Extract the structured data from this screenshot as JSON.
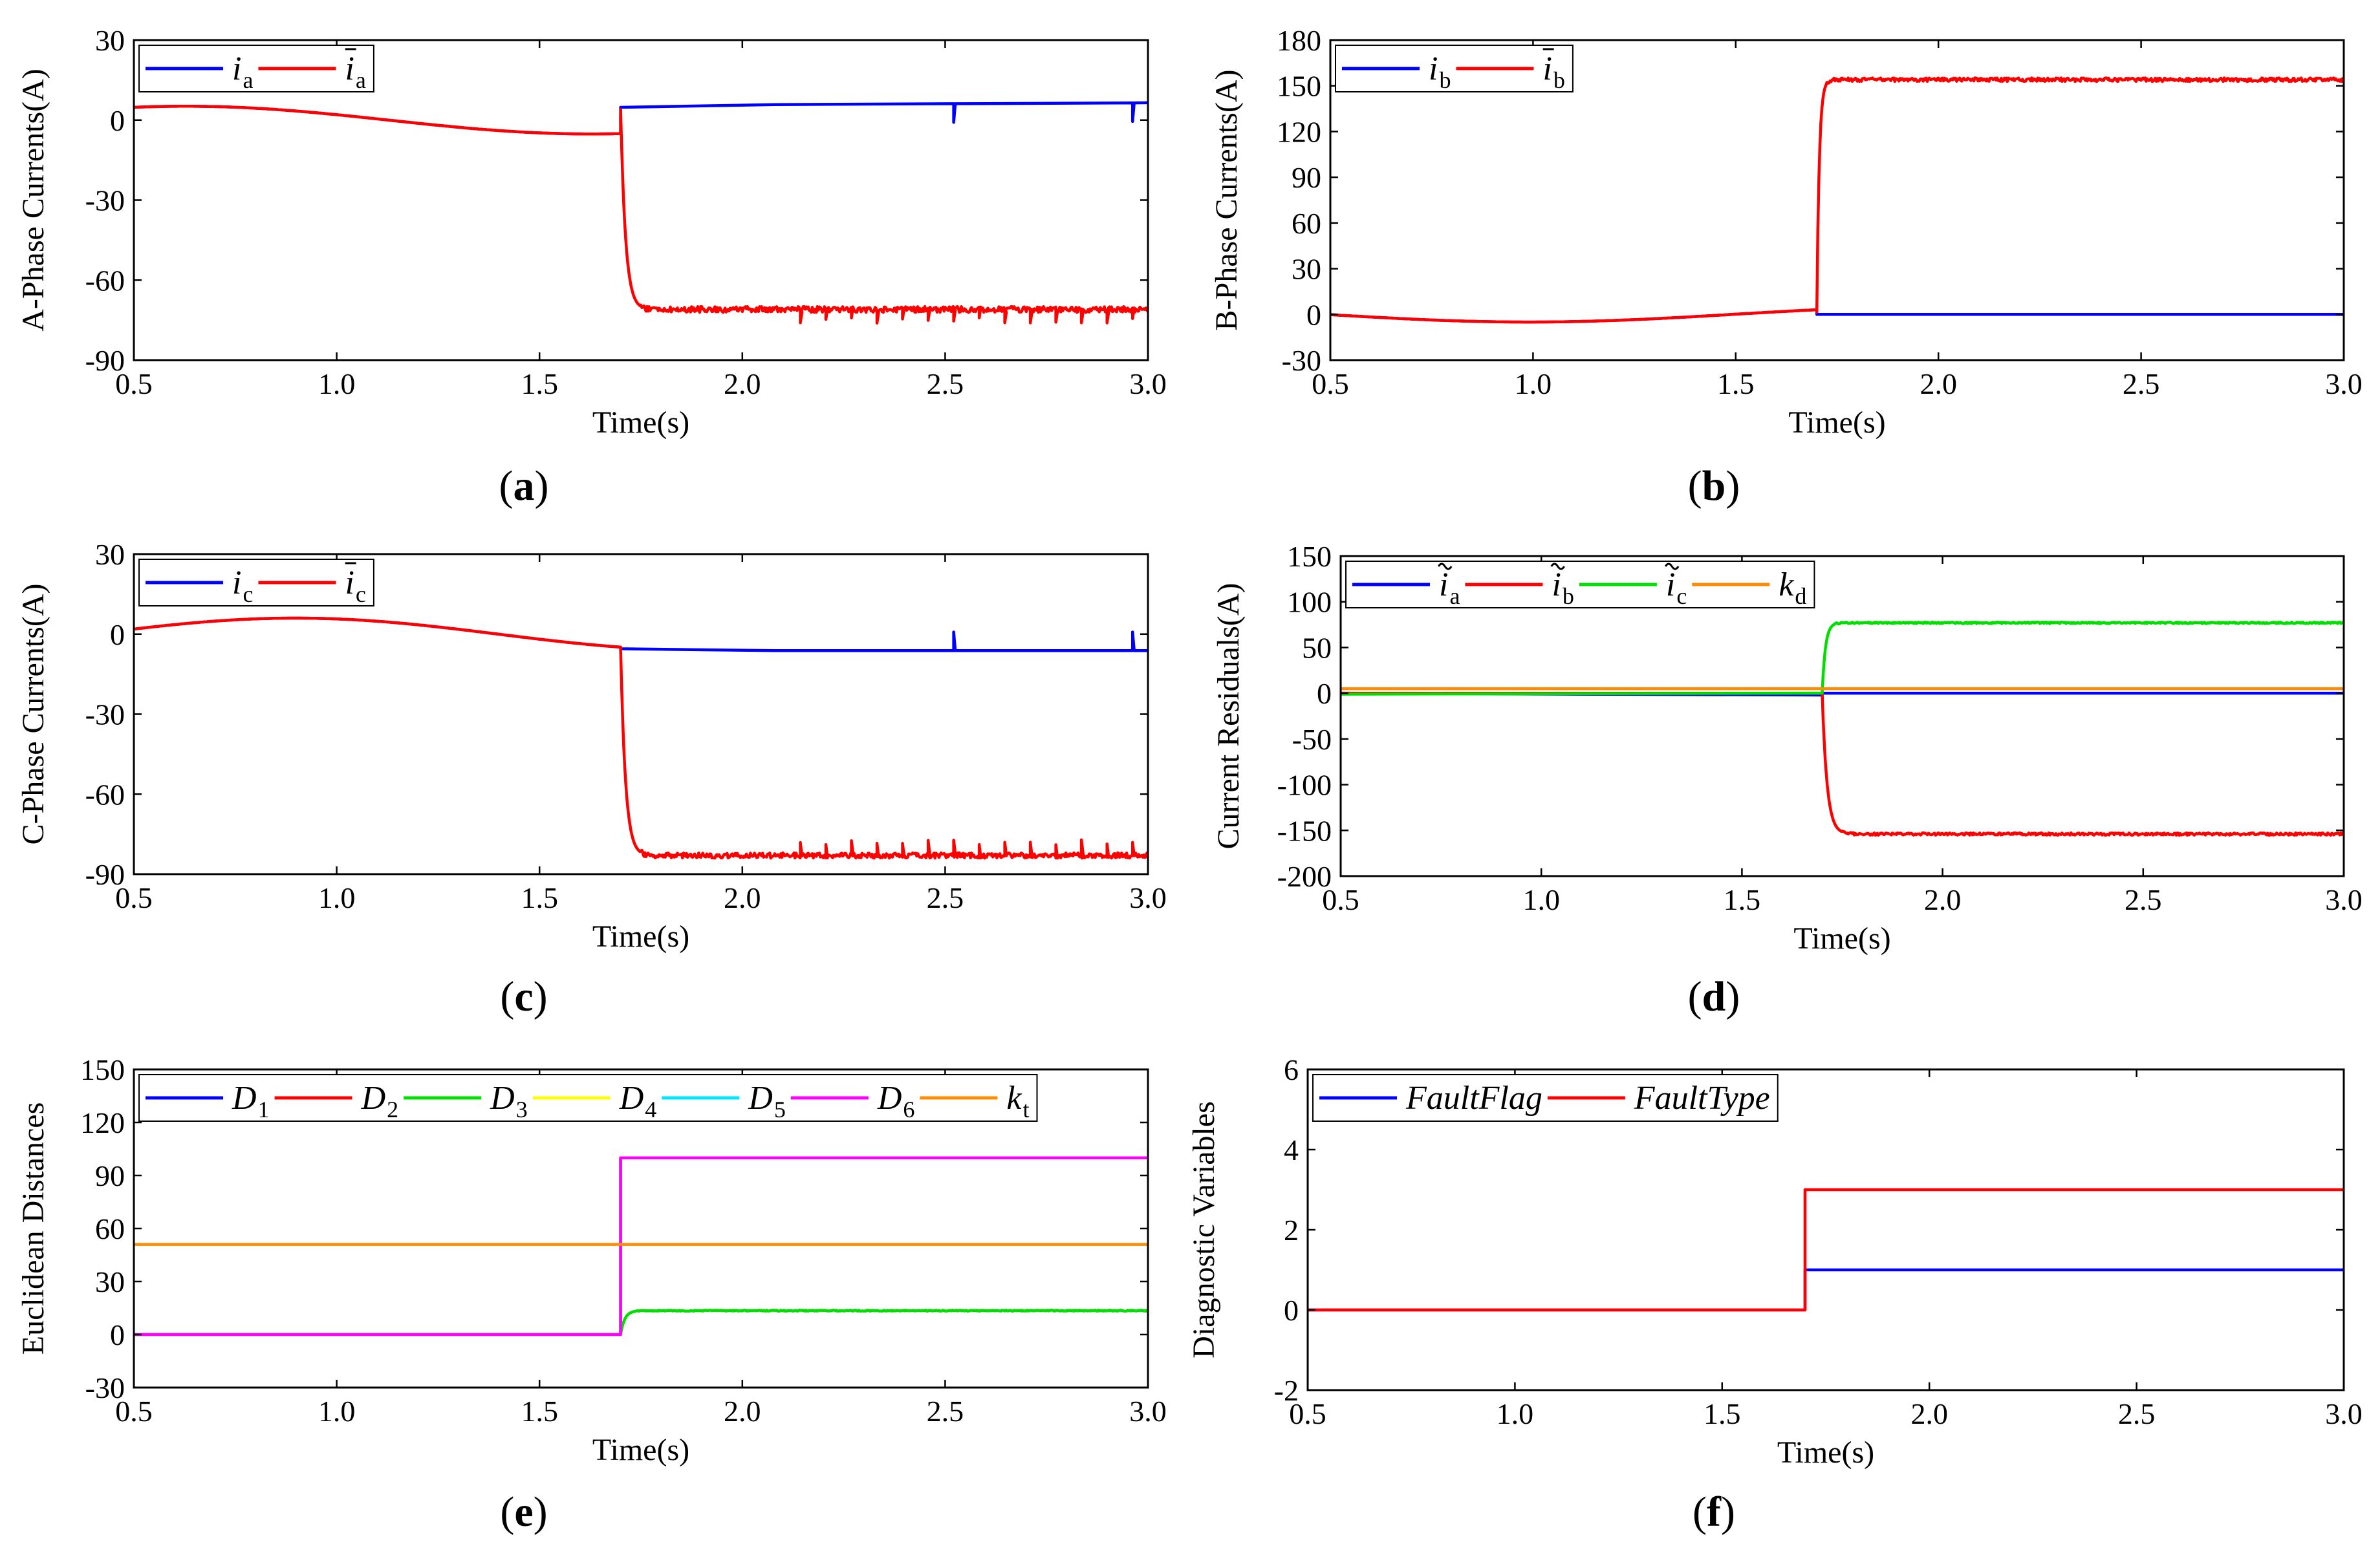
{
  "figure": {
    "panels": [
      {
        "id": "a",
        "label_text": "a",
        "chart_data": {
          "type": "line",
          "title": "",
          "xlabel": "Time(s)",
          "ylabel": "A-Phase Currents(A)",
          "xlim": [
            0.5,
            3.0
          ],
          "ylim": [
            -90,
            30
          ],
          "xticks": [
            "0.5",
            "1.0",
            "1.5",
            "2.0",
            "2.5",
            "3.0"
          ],
          "yticks": [
            "-90",
            "-60",
            "-30",
            "0",
            "30"
          ],
          "legend_position": "top-left",
          "series": [
            {
              "name": "i_a",
              "legend": {
                "base": "i",
                "accent": "",
                "sub": "a",
                "italic": true
              },
              "color": "#0000ff",
              "segments": [
                {
                  "from": 0.5,
                  "to": 1.7,
                  "kind": "sine",
                  "amp": 5.2,
                  "freq": 0.5,
                  "phase": -0.4
                },
                {
                  "from": 1.7,
                  "to": 2.08,
                  "kind": "linear",
                  "y0": 4.8,
                  "y1": 5.8
                },
                {
                  "from": 2.08,
                  "to": 3.0,
                  "kind": "spiky",
                  "y0": 5.8,
                  "y1": 6.5,
                  "spike": -7,
                  "period": 0.063
                }
              ]
            },
            {
              "name": "i_a (estimated)",
              "legend": {
                "base": "i",
                "accent": "bar",
                "sub": "a",
                "italic": true
              },
              "color": "#ff0000",
              "segments": [
                {
                  "from": 0.5,
                  "to": 1.7,
                  "kind": "sine",
                  "amp": 5.2,
                  "freq": 0.5,
                  "phase": -0.4
                },
                {
                  "from": 1.7,
                  "to": 3.0,
                  "kind": "step",
                  "y_start": 4.0,
                  "y_end": -71,
                  "tau": 0.012,
                  "noise": 1.1,
                  "spike": -4,
                  "period": 0.063,
                  "spike_from": 2.08
                }
              ]
            }
          ]
        }
      },
      {
        "id": "b",
        "label_text": "b",
        "chart_data": {
          "type": "line",
          "title": "",
          "xlabel": "Time(s)",
          "ylabel": "B-Phase Currents(A)",
          "xlim": [
            0.5,
            3.0
          ],
          "ylim": [
            -30,
            180
          ],
          "xticks": [
            "0.5",
            "1.0",
            "1.5",
            "2.0",
            "2.5",
            "3.0"
          ],
          "yticks": [
            "-30",
            "0",
            "30",
            "60",
            "90",
            "120",
            "150",
            "180"
          ],
          "legend_position": "top-left",
          "series": [
            {
              "name": "i_b",
              "legend": {
                "base": "i",
                "accent": "",
                "sub": "b",
                "italic": true
              },
              "color": "#0000ff",
              "segments": [
                {
                  "from": 0.5,
                  "to": 1.7,
                  "kind": "sine",
                  "amp": 5.0,
                  "freq": 0.5,
                  "phase": 1.6
                },
                {
                  "from": 1.7,
                  "to": 3.0,
                  "kind": "linear",
                  "y0": 0,
                  "y1": 0
                }
              ]
            },
            {
              "name": "i_b (estimated)",
              "legend": {
                "base": "i",
                "accent": "bar",
                "sub": "b",
                "italic": true
              },
              "color": "#ff0000",
              "segments": [
                {
                  "from": 0.5,
                  "to": 1.7,
                  "kind": "sine",
                  "amp": 5.0,
                  "freq": 0.5,
                  "phase": 1.6
                },
                {
                  "from": 1.7,
                  "to": 3.0,
                  "kind": "step",
                  "y_start": 1.5,
                  "y_end": 154,
                  "tau": 0.006,
                  "noise": 1.2
                }
              ]
            }
          ]
        }
      },
      {
        "id": "c",
        "label_text": "c",
        "chart_data": {
          "type": "line",
          "title": "",
          "xlabel": "Time(s)",
          "ylabel": "C-Phase Currents(A)",
          "xlim": [
            0.5,
            3.0
          ],
          "ylim": [
            -90,
            30
          ],
          "xticks": [
            "0.5",
            "1.0",
            "1.5",
            "2.0",
            "2.5",
            "3.0"
          ],
          "yticks": [
            "-90",
            "-60",
            "-30",
            "0",
            "30"
          ],
          "legend_position": "top-left",
          "series": [
            {
              "name": "i_c",
              "legend": {
                "base": "i",
                "accent": "",
                "sub": "c",
                "italic": true
              },
              "color": "#0000ff",
              "segments": [
                {
                  "from": 0.5,
                  "to": 1.7,
                  "kind": "sine",
                  "amp": 6.0,
                  "freq": 0.5,
                  "phase": -1.25
                },
                {
                  "from": 1.7,
                  "to": 2.08,
                  "kind": "linear",
                  "y0": -5.5,
                  "y1": -6.2
                },
                {
                  "from": 2.08,
                  "to": 3.0,
                  "kind": "spiky",
                  "y0": -6.2,
                  "y1": -6.2,
                  "spike": 7,
                  "period": 0.063
                }
              ]
            },
            {
              "name": "i_c (estimated)",
              "legend": {
                "base": "i",
                "accent": "bar",
                "sub": "c",
                "italic": true
              },
              "color": "#ff0000",
              "segments": [
                {
                  "from": 0.5,
                  "to": 1.7,
                  "kind": "sine",
                  "amp": 6.0,
                  "freq": 0.5,
                  "phase": -1.25
                },
                {
                  "from": 1.7,
                  "to": 3.0,
                  "kind": "step",
                  "y_start": -5.5,
                  "y_end": -83,
                  "tau": 0.012,
                  "noise": 1.0,
                  "spike": 5,
                  "period": 0.063,
                  "spike_from": 2.08
                }
              ]
            }
          ]
        }
      },
      {
        "id": "d",
        "label_text": "d",
        "chart_data": {
          "type": "line",
          "title": "",
          "xlabel": "Time(s)",
          "ylabel": "Current Residuals(A)",
          "xlim": [
            0.5,
            3.0
          ],
          "ylim": [
            -200,
            150
          ],
          "xticks": [
            "0.5",
            "1.0",
            "1.5",
            "2.0",
            "2.5",
            "3.0"
          ],
          "yticks": [
            "-200",
            "-150",
            "-100",
            "-50",
            "0",
            "50",
            "100",
            "150"
          ],
          "legend_position": "top-left",
          "series": [
            {
              "name": "residual i_a",
              "legend": {
                "base": "i",
                "accent": "tilde",
                "sub": "a",
                "italic": true
              },
              "color": "#0000ff",
              "segments": [
                {
                  "from": 0.5,
                  "to": 1.7,
                  "kind": "linear",
                  "y0": 0,
                  "y1": -2
                },
                {
                  "from": 1.7,
                  "to": 3.0,
                  "kind": "linear",
                  "y0": 0,
                  "y1": 0
                }
              ]
            },
            {
              "name": "residual i_b",
              "legend": {
                "base": "i",
                "accent": "tilde",
                "sub": "b",
                "italic": true
              },
              "color": "#ff0000",
              "segments": [
                {
                  "from": 0.5,
                  "to": 1.7,
                  "kind": "linear",
                  "y0": 0,
                  "y1": 0
                },
                {
                  "from": 1.7,
                  "to": 3.0,
                  "kind": "step",
                  "y_start": 0,
                  "y_end": -154,
                  "tau": 0.012,
                  "noise": 1.3
                }
              ]
            },
            {
              "name": "residual i_c",
              "legend": {
                "base": "i",
                "accent": "tilde",
                "sub": "c",
                "italic": true
              },
              "color": "#00e000",
              "segments": [
                {
                  "from": 0.5,
                  "to": 1.7,
                  "kind": "linear",
                  "y0": -1,
                  "y1": 0
                },
                {
                  "from": 1.7,
                  "to": 3.0,
                  "kind": "step",
                  "y_start": 0,
                  "y_end": 77,
                  "tau": 0.008,
                  "noise": 0.9
                }
              ]
            },
            {
              "name": "k_d",
              "legend": {
                "base": "k",
                "accent": "",
                "sub": "d",
                "italic": true
              },
              "color": "#ff8c00",
              "segments": [
                {
                  "from": 0.5,
                  "to": 3.0,
                  "kind": "linear",
                  "y0": 5,
                  "y1": 5
                }
              ]
            }
          ]
        }
      },
      {
        "id": "e",
        "label_text": "e",
        "chart_data": {
          "type": "line",
          "title": "",
          "xlabel": "Time(s)",
          "ylabel": "Euclidean Distances",
          "xlim": [
            0.5,
            3.0
          ],
          "ylim": [
            -30,
            150
          ],
          "xticks": [
            "0.5",
            "1.0",
            "1.5",
            "2.0",
            "2.5",
            "3.0"
          ],
          "yticks": [
            "-30",
            "0",
            "30",
            "60",
            "90",
            "120",
            "150"
          ],
          "legend_position": "top",
          "series": [
            {
              "name": "D_1",
              "legend": {
                "base": "D",
                "accent": "",
                "sub": "1",
                "italic": true
              },
              "color": "#0000ff",
              "segments": [
                {
                  "from": 0.5,
                  "to": 1.7,
                  "kind": "linear",
                  "y0": 0,
                  "y1": 0
                },
                {
                  "from": 1.7,
                  "to": 3.0,
                  "kind": "linear",
                  "y0": 100,
                  "y1": 100
                }
              ]
            },
            {
              "name": "D_2",
              "legend": {
                "base": "D",
                "accent": "",
                "sub": "2",
                "italic": true
              },
              "color": "#ff0000",
              "segments": [
                {
                  "from": 0.5,
                  "to": 1.7,
                  "kind": "linear",
                  "y0": 0,
                  "y1": 0
                },
                {
                  "from": 1.7,
                  "to": 3.0,
                  "kind": "linear",
                  "y0": 100,
                  "y1": 100
                }
              ]
            },
            {
              "name": "D_3",
              "legend": {
                "base": "D",
                "accent": "",
                "sub": "3",
                "italic": true
              },
              "color": "#00e000",
              "segments": [
                {
                  "from": 0.5,
                  "to": 1.7,
                  "kind": "linear",
                  "y0": 0,
                  "y1": 0
                },
                {
                  "from": 1.7,
                  "to": 3.0,
                  "kind": "step",
                  "y_start": 0,
                  "y_end": 13.5,
                  "tau": 0.01,
                  "noise": 0.3
                }
              ]
            },
            {
              "name": "D_4",
              "legend": {
                "base": "D",
                "accent": "",
                "sub": "4",
                "italic": true
              },
              "color": "#ffff00",
              "segments": [
                {
                  "from": 0.5,
                  "to": 1.7,
                  "kind": "linear",
                  "y0": 0,
                  "y1": 0
                },
                {
                  "from": 1.7,
                  "to": 3.0,
                  "kind": "linear",
                  "y0": 100,
                  "y1": 100
                }
              ]
            },
            {
              "name": "D_5",
              "legend": {
                "base": "D",
                "accent": "",
                "sub": "5",
                "italic": true
              },
              "color": "#00e5ff",
              "segments": [
                {
                  "from": 0.5,
                  "to": 1.7,
                  "kind": "linear",
                  "y0": 0,
                  "y1": 0
                },
                {
                  "from": 1.7,
                  "to": 3.0,
                  "kind": "linear",
                  "y0": 100,
                  "y1": 100
                }
              ]
            },
            {
              "name": "D_6",
              "legend": {
                "base": "D",
                "accent": "",
                "sub": "6",
                "italic": true
              },
              "color": "#ff00ff",
              "segments": [
                {
                  "from": 0.5,
                  "to": 1.7,
                  "kind": "linear",
                  "y0": 0,
                  "y1": 0
                },
                {
                  "from": 1.7,
                  "to": 3.0,
                  "kind": "linear",
                  "y0": 100,
                  "y1": 100
                }
              ]
            },
            {
              "name": "k_t",
              "legend": {
                "base": "k",
                "accent": "",
                "sub": "t",
                "italic": true
              },
              "color": "#ff8c00",
              "segments": [
                {
                  "from": 0.5,
                  "to": 3.0,
                  "kind": "linear",
                  "y0": 51,
                  "y1": 51
                }
              ]
            }
          ]
        }
      },
      {
        "id": "f",
        "label_text": "f",
        "chart_data": {
          "type": "line",
          "title": "",
          "xlabel": "Time(s)",
          "ylabel": "Diagnostic Variables",
          "xlim": [
            0.5,
            3.0
          ],
          "ylim": [
            -2,
            6
          ],
          "xticks": [
            "0.5",
            "1.0",
            "1.5",
            "2.0",
            "2.5",
            "3.0"
          ],
          "yticks": [
            "-2",
            "0",
            "2",
            "4",
            "6"
          ],
          "legend_position": "top-left",
          "series": [
            {
              "name": "FaultFlag",
              "legend": {
                "base": "FaultFlag",
                "accent": "",
                "sub": "",
                "italic": true
              },
              "color": "#0000ff",
              "segments": [
                {
                  "from": 0.5,
                  "to": 1.7,
                  "kind": "linear",
                  "y0": 0,
                  "y1": 0
                },
                {
                  "from": 1.7,
                  "to": 3.0,
                  "kind": "linear",
                  "y0": 1,
                  "y1": 1
                }
              ]
            },
            {
              "name": "FaultType",
              "legend": {
                "base": "FaultType",
                "accent": "",
                "sub": "",
                "italic": true
              },
              "color": "#ff0000",
              "segments": [
                {
                  "from": 0.5,
                  "to": 1.7,
                  "kind": "linear",
                  "y0": 0,
                  "y1": 0
                },
                {
                  "from": 1.7,
                  "to": 3.0,
                  "kind": "linear",
                  "y0": 3,
                  "y1": 3
                }
              ]
            }
          ]
        }
      }
    ]
  }
}
